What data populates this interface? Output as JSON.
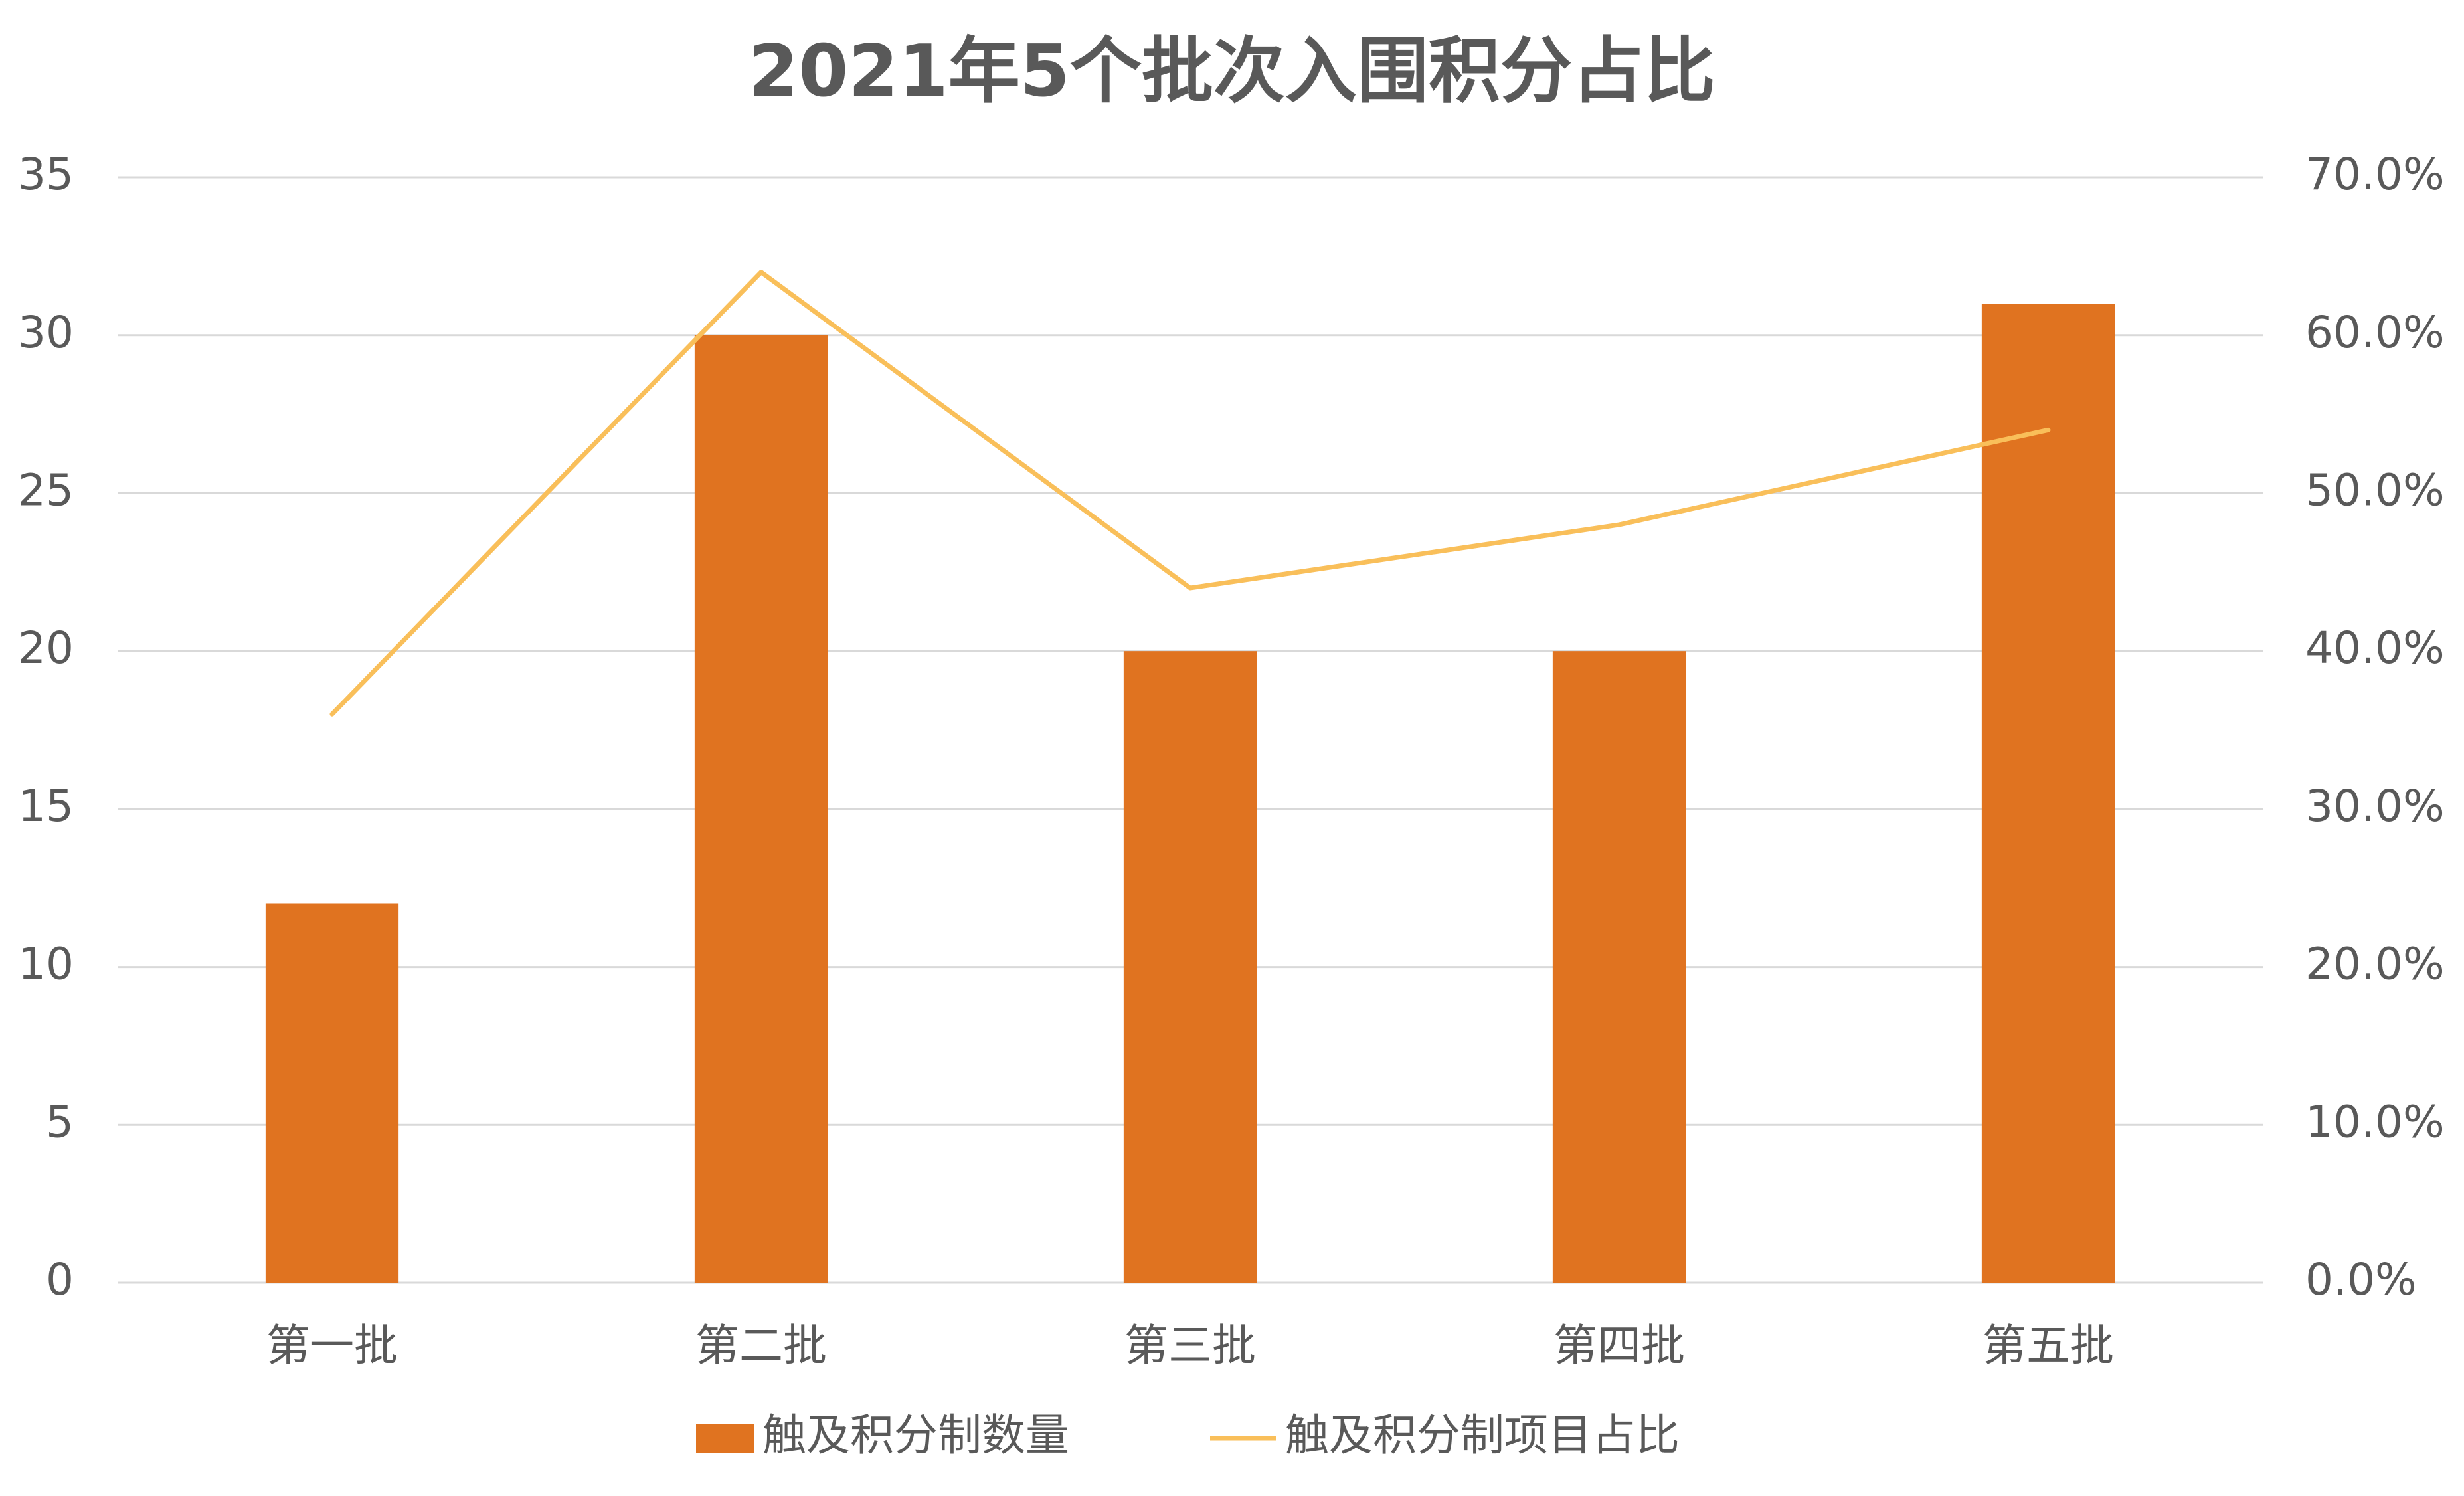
{
  "chart_data": {
    "type": "bar",
    "title": "2021年5个批次入围积分占比",
    "categories": [
      "第一批",
      "第二批",
      "第三批",
      "第四批",
      "第五批"
    ],
    "series": [
      {
        "name": "触及积分制数量",
        "type": "bar",
        "color": "#e07320",
        "values": [
          12,
          30,
          20,
          20,
          31
        ]
      },
      {
        "name": "触及积分制项目占比",
        "type": "line",
        "axis": "y2",
        "color": "#f9bf5a",
        "values": [
          36,
          64,
          44,
          48,
          54
        ]
      }
    ],
    "ylim": [
      0,
      35
    ],
    "yticks": [
      0,
      5,
      10,
      15,
      20,
      25,
      30,
      35
    ],
    "y2lim": [
      0,
      70
    ],
    "y2ticks": [
      {
        "value": 0,
        "label": "0.0%"
      },
      {
        "value": 10,
        "label": "10.0%"
      },
      {
        "value": 20,
        "label": "20.0%"
      },
      {
        "value": 30,
        "label": "30.0%"
      },
      {
        "value": 40,
        "label": "40.0%"
      },
      {
        "value": 50,
        "label": "50.0%"
      },
      {
        "value": 60,
        "label": "60.0%"
      },
      {
        "value": 70,
        "label": "70.0%"
      }
    ],
    "grid": true,
    "legend": "bottom"
  }
}
